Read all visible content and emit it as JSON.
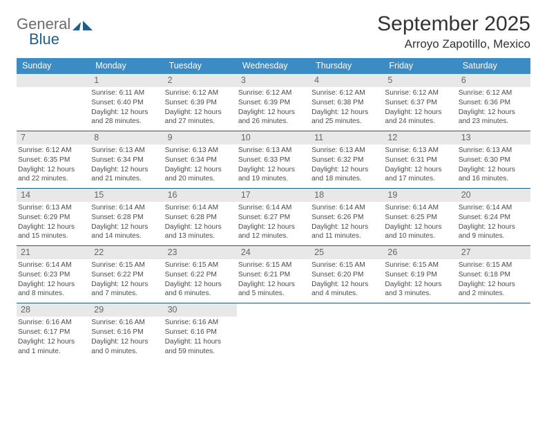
{
  "logo": {
    "text1": "General",
    "text2": "Blue"
  },
  "title": {
    "month": "September 2025",
    "location": "Arroyo Zapotillo, Mexico"
  },
  "colors": {
    "header_blue": "#3b8bc4",
    "logo_gray": "#6b6b6b",
    "logo_blue": "#1f5f8b",
    "day_bg": "#e8e8e8",
    "day_text": "#666666",
    "body_text": "#4a4a4a",
    "rule": "#1a5a7a",
    "background": "#ffffff"
  },
  "typography": {
    "title_fontsize": 30,
    "location_fontsize": 17,
    "header_fontsize": 12.5,
    "dayno_fontsize": 12.5,
    "body_fontsize": 10.2,
    "logo_fontsize": 22
  },
  "headers": [
    "Sunday",
    "Monday",
    "Tuesday",
    "Wednesday",
    "Thursday",
    "Friday",
    "Saturday"
  ],
  "weeks": [
    [
      {
        "empty": true
      },
      {
        "day": "1",
        "sunrise": "Sunrise: 6:11 AM",
        "sunset": "Sunset: 6:40 PM",
        "dl1": "Daylight: 12 hours",
        "dl2": "and 28 minutes."
      },
      {
        "day": "2",
        "sunrise": "Sunrise: 6:12 AM",
        "sunset": "Sunset: 6:39 PM",
        "dl1": "Daylight: 12 hours",
        "dl2": "and 27 minutes."
      },
      {
        "day": "3",
        "sunrise": "Sunrise: 6:12 AM",
        "sunset": "Sunset: 6:39 PM",
        "dl1": "Daylight: 12 hours",
        "dl2": "and 26 minutes."
      },
      {
        "day": "4",
        "sunrise": "Sunrise: 6:12 AM",
        "sunset": "Sunset: 6:38 PM",
        "dl1": "Daylight: 12 hours",
        "dl2": "and 25 minutes."
      },
      {
        "day": "5",
        "sunrise": "Sunrise: 6:12 AM",
        "sunset": "Sunset: 6:37 PM",
        "dl1": "Daylight: 12 hours",
        "dl2": "and 24 minutes."
      },
      {
        "day": "6",
        "sunrise": "Sunrise: 6:12 AM",
        "sunset": "Sunset: 6:36 PM",
        "dl1": "Daylight: 12 hours",
        "dl2": "and 23 minutes."
      }
    ],
    [
      {
        "day": "7",
        "sunrise": "Sunrise: 6:12 AM",
        "sunset": "Sunset: 6:35 PM",
        "dl1": "Daylight: 12 hours",
        "dl2": "and 22 minutes."
      },
      {
        "day": "8",
        "sunrise": "Sunrise: 6:13 AM",
        "sunset": "Sunset: 6:34 PM",
        "dl1": "Daylight: 12 hours",
        "dl2": "and 21 minutes."
      },
      {
        "day": "9",
        "sunrise": "Sunrise: 6:13 AM",
        "sunset": "Sunset: 6:34 PM",
        "dl1": "Daylight: 12 hours",
        "dl2": "and 20 minutes."
      },
      {
        "day": "10",
        "sunrise": "Sunrise: 6:13 AM",
        "sunset": "Sunset: 6:33 PM",
        "dl1": "Daylight: 12 hours",
        "dl2": "and 19 minutes."
      },
      {
        "day": "11",
        "sunrise": "Sunrise: 6:13 AM",
        "sunset": "Sunset: 6:32 PM",
        "dl1": "Daylight: 12 hours",
        "dl2": "and 18 minutes."
      },
      {
        "day": "12",
        "sunrise": "Sunrise: 6:13 AM",
        "sunset": "Sunset: 6:31 PM",
        "dl1": "Daylight: 12 hours",
        "dl2": "and 17 minutes."
      },
      {
        "day": "13",
        "sunrise": "Sunrise: 6:13 AM",
        "sunset": "Sunset: 6:30 PM",
        "dl1": "Daylight: 12 hours",
        "dl2": "and 16 minutes."
      }
    ],
    [
      {
        "day": "14",
        "sunrise": "Sunrise: 6:13 AM",
        "sunset": "Sunset: 6:29 PM",
        "dl1": "Daylight: 12 hours",
        "dl2": "and 15 minutes."
      },
      {
        "day": "15",
        "sunrise": "Sunrise: 6:14 AM",
        "sunset": "Sunset: 6:28 PM",
        "dl1": "Daylight: 12 hours",
        "dl2": "and 14 minutes."
      },
      {
        "day": "16",
        "sunrise": "Sunrise: 6:14 AM",
        "sunset": "Sunset: 6:28 PM",
        "dl1": "Daylight: 12 hours",
        "dl2": "and 13 minutes."
      },
      {
        "day": "17",
        "sunrise": "Sunrise: 6:14 AM",
        "sunset": "Sunset: 6:27 PM",
        "dl1": "Daylight: 12 hours",
        "dl2": "and 12 minutes."
      },
      {
        "day": "18",
        "sunrise": "Sunrise: 6:14 AM",
        "sunset": "Sunset: 6:26 PM",
        "dl1": "Daylight: 12 hours",
        "dl2": "and 11 minutes."
      },
      {
        "day": "19",
        "sunrise": "Sunrise: 6:14 AM",
        "sunset": "Sunset: 6:25 PM",
        "dl1": "Daylight: 12 hours",
        "dl2": "and 10 minutes."
      },
      {
        "day": "20",
        "sunrise": "Sunrise: 6:14 AM",
        "sunset": "Sunset: 6:24 PM",
        "dl1": "Daylight: 12 hours",
        "dl2": "and 9 minutes."
      }
    ],
    [
      {
        "day": "21",
        "sunrise": "Sunrise: 6:14 AM",
        "sunset": "Sunset: 6:23 PM",
        "dl1": "Daylight: 12 hours",
        "dl2": "and 8 minutes."
      },
      {
        "day": "22",
        "sunrise": "Sunrise: 6:15 AM",
        "sunset": "Sunset: 6:22 PM",
        "dl1": "Daylight: 12 hours",
        "dl2": "and 7 minutes."
      },
      {
        "day": "23",
        "sunrise": "Sunrise: 6:15 AM",
        "sunset": "Sunset: 6:22 PM",
        "dl1": "Daylight: 12 hours",
        "dl2": "and 6 minutes."
      },
      {
        "day": "24",
        "sunrise": "Sunrise: 6:15 AM",
        "sunset": "Sunset: 6:21 PM",
        "dl1": "Daylight: 12 hours",
        "dl2": "and 5 minutes."
      },
      {
        "day": "25",
        "sunrise": "Sunrise: 6:15 AM",
        "sunset": "Sunset: 6:20 PM",
        "dl1": "Daylight: 12 hours",
        "dl2": "and 4 minutes."
      },
      {
        "day": "26",
        "sunrise": "Sunrise: 6:15 AM",
        "sunset": "Sunset: 6:19 PM",
        "dl1": "Daylight: 12 hours",
        "dl2": "and 3 minutes."
      },
      {
        "day": "27",
        "sunrise": "Sunrise: 6:15 AM",
        "sunset": "Sunset: 6:18 PM",
        "dl1": "Daylight: 12 hours",
        "dl2": "and 2 minutes."
      }
    ],
    [
      {
        "day": "28",
        "sunrise": "Sunrise: 6:16 AM",
        "sunset": "Sunset: 6:17 PM",
        "dl1": "Daylight: 12 hours",
        "dl2": "and 1 minute."
      },
      {
        "day": "29",
        "sunrise": "Sunrise: 6:16 AM",
        "sunset": "Sunset: 6:16 PM",
        "dl1": "Daylight: 12 hours",
        "dl2": "and 0 minutes."
      },
      {
        "day": "30",
        "sunrise": "Sunrise: 6:16 AM",
        "sunset": "Sunset: 6:16 PM",
        "dl1": "Daylight: 11 hours",
        "dl2": "and 59 minutes."
      },
      {
        "empty": true
      },
      {
        "empty": true
      },
      {
        "empty": true
      },
      {
        "empty": true
      }
    ]
  ]
}
